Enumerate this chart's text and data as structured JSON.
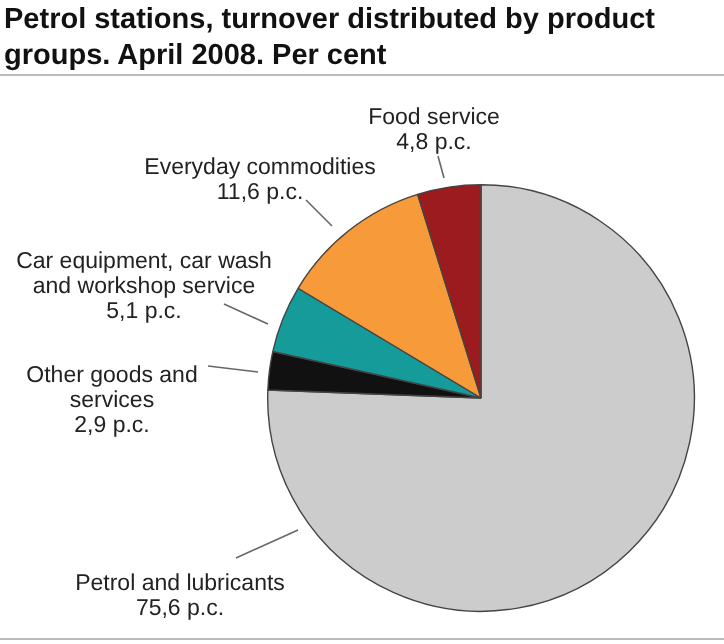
{
  "chart_data": {
    "type": "pie",
    "title": "Petrol stations, turnover distributed by product groups. April 2008. Per cent",
    "categories": [
      "Petrol and lubricants",
      "Other goods and services",
      "Car equipment, car wash and workshop service",
      "Everyday commodities",
      "Food service"
    ],
    "values": [
      75.6,
      2.9,
      5.1,
      11.6,
      4.8
    ],
    "colors": [
      "#cccccc",
      "#111111",
      "#169b9b",
      "#f79a3a",
      "#9b1b1f"
    ],
    "value_labels": [
      "75,6 p.c.",
      "2,9 p.c.",
      "5,1 p.c.",
      "11,6 p.c.",
      "4,8 p.c."
    ],
    "legend": false
  }
}
